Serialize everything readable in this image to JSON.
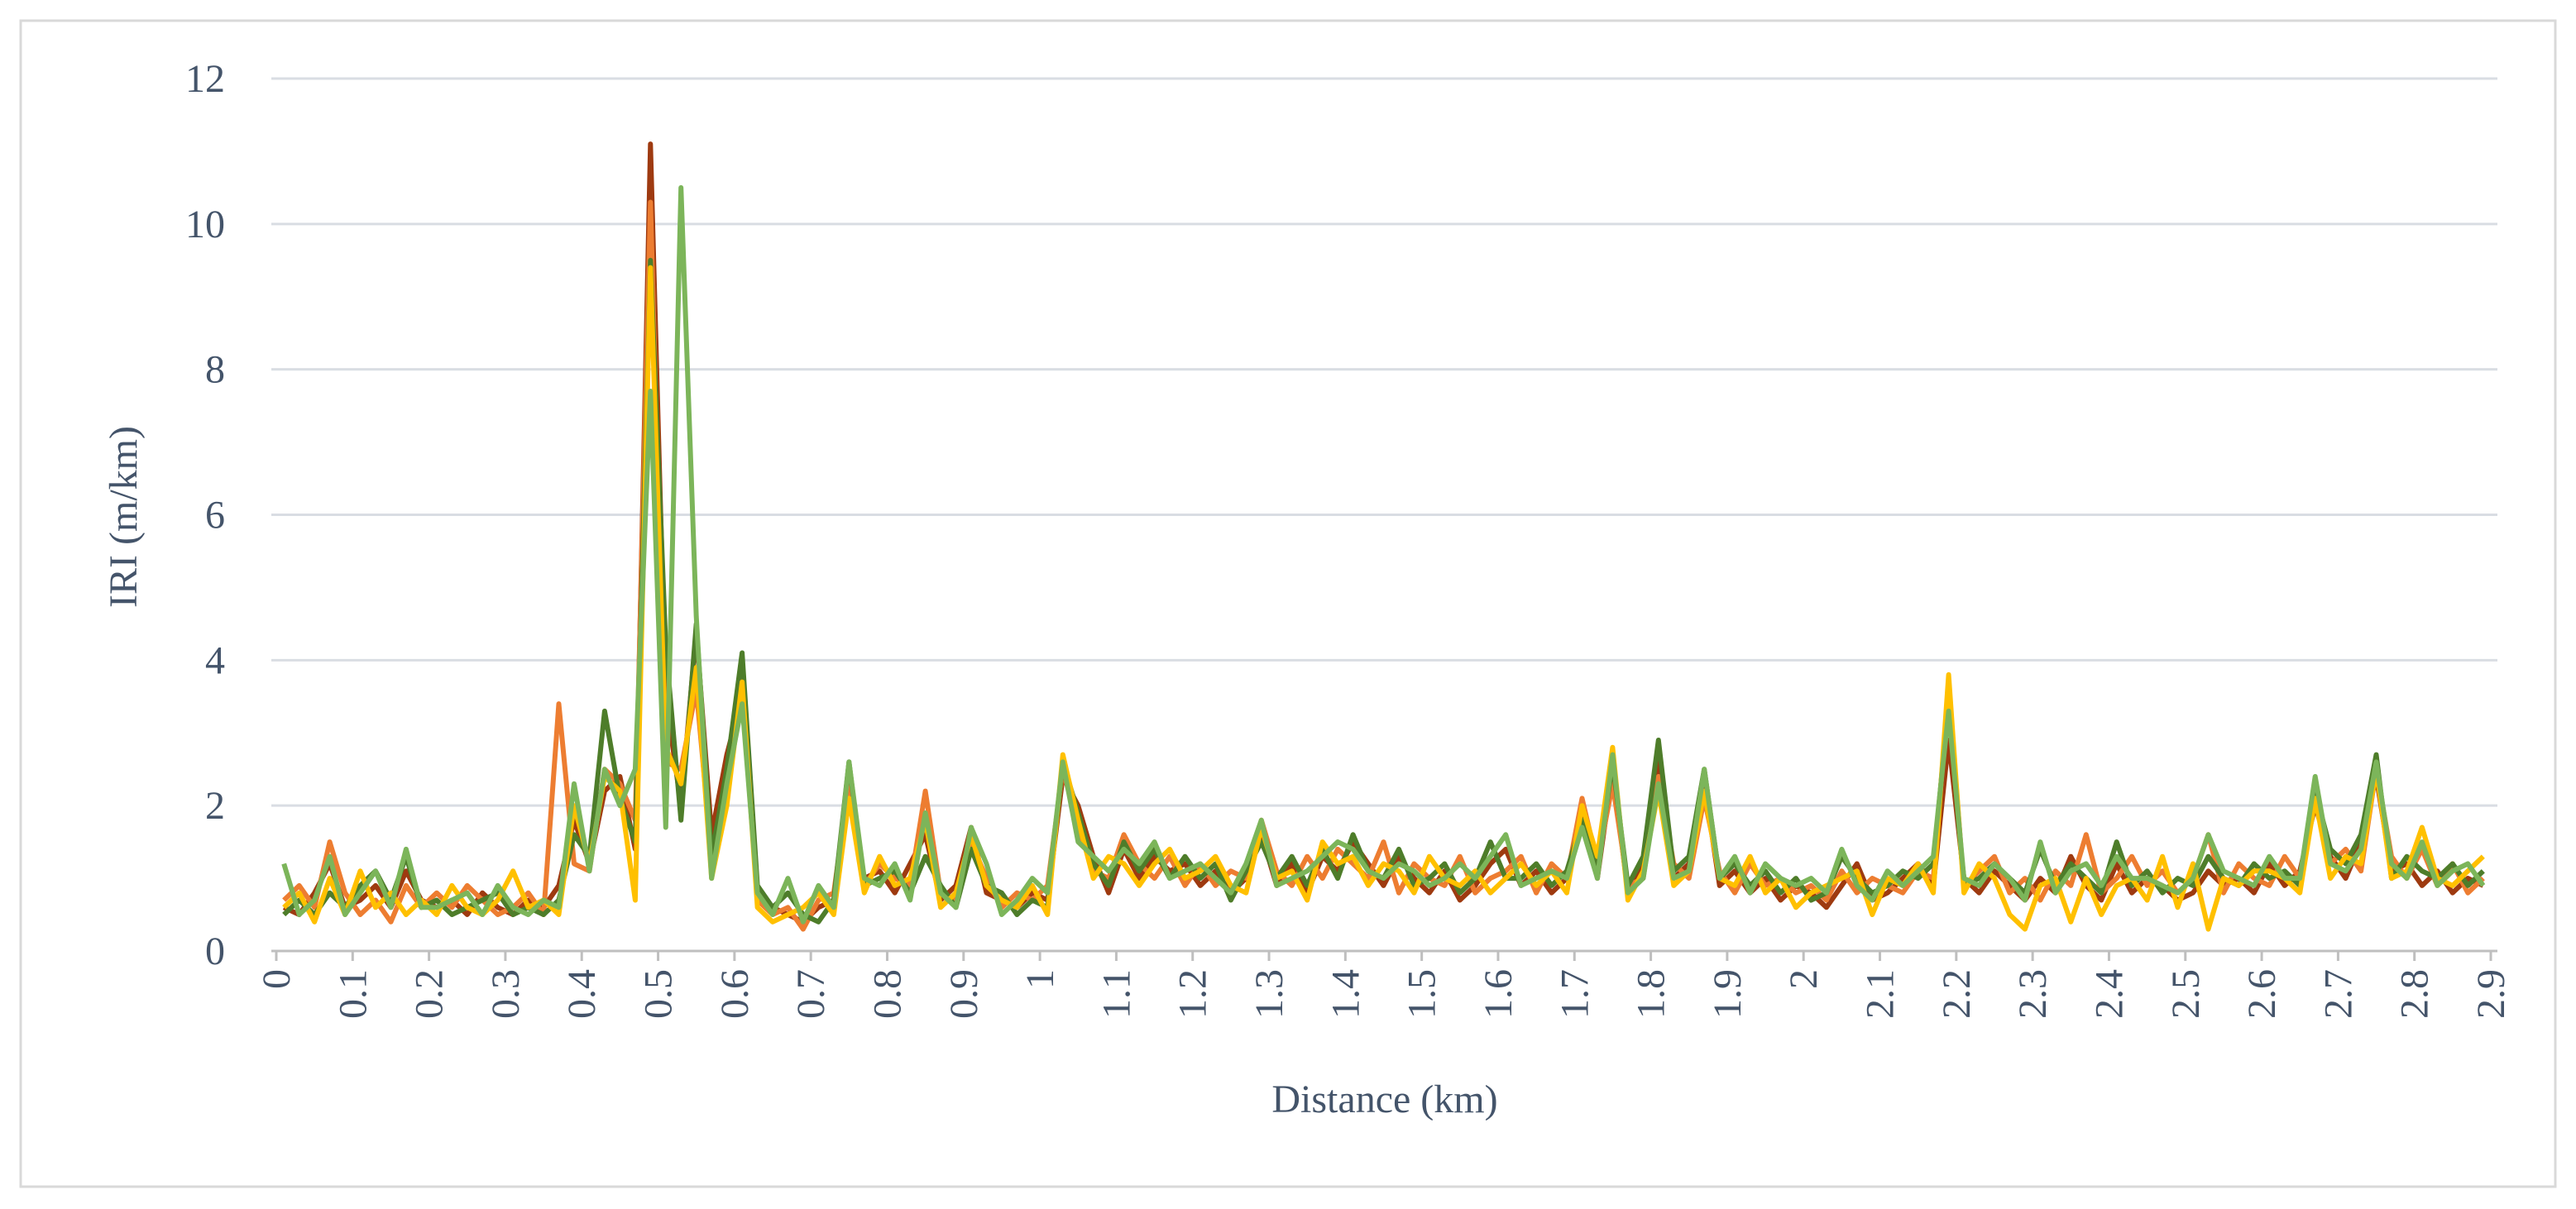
{
  "chart_data": {
    "type": "line",
    "x_label": "Distance (km)",
    "y_label": "IRI (m/km)",
    "x": [
      0.01,
      0.03,
      0.05,
      0.07,
      0.09,
      0.11,
      0.13,
      0.15,
      0.17,
      0.19,
      0.21,
      0.23,
      0.25,
      0.27,
      0.29,
      0.31,
      0.33,
      0.35,
      0.37,
      0.39,
      0.41,
      0.43,
      0.45,
      0.47,
      0.49,
      0.51,
      0.53,
      0.55,
      0.57,
      0.59,
      0.61,
      0.63,
      0.65,
      0.67,
      0.69,
      0.71,
      0.73,
      0.75,
      0.77,
      0.79,
      0.81,
      0.83,
      0.85,
      0.87,
      0.89,
      0.91,
      0.93,
      0.95,
      0.97,
      0.99,
      1.01,
      1.03,
      1.05,
      1.07,
      1.09,
      1.11,
      1.13,
      1.15,
      1.17,
      1.19,
      1.21,
      1.23,
      1.25,
      1.27,
      1.29,
      1.31,
      1.33,
      1.35,
      1.37,
      1.39,
      1.41,
      1.43,
      1.45,
      1.47,
      1.49,
      1.51,
      1.53,
      1.55,
      1.57,
      1.59,
      1.61,
      1.63,
      1.65,
      1.67,
      1.69,
      1.71,
      1.73,
      1.75,
      1.77,
      1.79,
      1.81,
      1.83,
      1.85,
      1.87,
      1.89,
      1.91,
      1.93,
      1.95,
      1.97,
      1.99,
      2.01,
      2.03,
      2.05,
      2.07,
      2.09,
      2.11,
      2.13,
      2.15,
      2.17,
      2.19,
      2.21,
      2.23,
      2.25,
      2.27,
      2.29,
      2.31,
      2.33,
      2.35,
      2.37,
      2.39,
      2.41,
      2.43,
      2.45,
      2.47,
      2.49,
      2.51,
      2.53,
      2.55,
      2.57,
      2.59,
      2.61,
      2.63,
      2.65,
      2.67,
      2.69,
      2.71,
      2.73,
      2.75,
      2.77,
      2.79,
      2.81,
      2.83,
      2.85,
      2.87,
      2.89
    ],
    "series": [
      {
        "color": "#9e3a10",
        "values": [
          0.6,
          0.5,
          0.8,
          1.2,
          0.6,
          0.7,
          0.9,
          0.6,
          1.1,
          0.7,
          0.6,
          0.7,
          0.5,
          0.8,
          0.6,
          0.5,
          0.7,
          0.6,
          0.9,
          1.8,
          1.2,
          2.2,
          2.4,
          1.4,
          11.1,
          3.5,
          2.0,
          4.4,
          1.6,
          2.7,
          3.5,
          0.8,
          0.6,
          0.5,
          0.4,
          0.6,
          0.7,
          2.2,
          1.0,
          1.1,
          0.8,
          1.2,
          1.6,
          0.7,
          0.9,
          1.7,
          0.8,
          0.7,
          0.6,
          0.8,
          0.7,
          2.4,
          2.0,
          1.3,
          0.8,
          1.4,
          1.0,
          1.3,
          1.1,
          1.2,
          0.9,
          1.1,
          0.8,
          1.0,
          1.6,
          0.9,
          1.2,
          0.8,
          1.3,
          1.1,
          1.5,
          1.2,
          0.9,
          1.3,
          1.0,
          0.8,
          1.1,
          0.7,
          0.9,
          1.2,
          1.4,
          0.9,
          1.1,
          0.8,
          1.0,
          1.9,
          1.0,
          2.5,
          0.8,
          1.2,
          2.6,
          1.0,
          1.2,
          2.3,
          0.9,
          1.1,
          0.8,
          1.0,
          0.7,
          0.9,
          0.8,
          0.6,
          0.9,
          1.2,
          0.7,
          0.8,
          1.0,
          1.2,
          0.9,
          2.9,
          1.0,
          0.8,
          1.1,
          0.9,
          0.7,
          1.0,
          0.8,
          1.3,
          0.9,
          0.7,
          1.2,
          0.8,
          1.0,
          0.9,
          0.7,
          0.8,
          1.1,
          0.9,
          1.0,
          0.8,
          1.2,
          0.9,
          1.1,
          2.0,
          1.3,
          1.0,
          1.5,
          2.4,
          1.1,
          1.2,
          0.9,
          1.1,
          0.8,
          1.0,
          0.9
        ]
      },
      {
        "color": "#ed7d31",
        "values": [
          0.7,
          0.9,
          0.6,
          1.5,
          0.8,
          0.5,
          0.7,
          0.4,
          0.9,
          0.6,
          0.8,
          0.6,
          0.9,
          0.7,
          0.5,
          0.6,
          0.8,
          0.5,
          3.4,
          1.2,
          1.1,
          2.5,
          2.3,
          1.8,
          10.3,
          2.6,
          2.5,
          3.6,
          1.3,
          2.2,
          3.8,
          0.7,
          0.5,
          0.6,
          0.3,
          0.7,
          0.8,
          2.3,
          0.9,
          1.2,
          1.0,
          0.9,
          2.2,
          0.8,
          0.7,
          1.5,
          1.0,
          0.6,
          0.8,
          0.7,
          0.9,
          2.5,
          1.7,
          1.1,
          1.0,
          1.6,
          1.2,
          1.0,
          1.3,
          0.9,
          1.2,
          0.9,
          1.1,
          1.0,
          1.8,
          1.1,
          0.9,
          1.3,
          1.0,
          1.4,
          1.2,
          1.0,
          1.5,
          0.8,
          1.2,
          1.0,
          0.9,
          1.3,
          0.8,
          1.0,
          1.1,
          1.3,
          0.8,
          1.2,
          1.0,
          2.1,
          1.2,
          2.3,
          0.9,
          1.0,
          2.4,
          1.2,
          1.0,
          2.1,
          1.1,
          0.8,
          1.2,
          0.9,
          1.0,
          0.8,
          0.9,
          0.7,
          1.1,
          0.8,
          1.0,
          0.9,
          0.8,
          1.1,
          1.0,
          3.6,
          0.9,
          1.1,
          1.3,
          0.8,
          1.0,
          0.7,
          1.1,
          0.9,
          1.6,
          0.8,
          1.0,
          1.3,
          0.9,
          1.1,
          0.8,
          1.0,
          1.6,
          0.8,
          1.2,
          1.0,
          0.9,
          1.3,
          1.0,
          2.3,
          1.2,
          1.4,
          1.1,
          2.5,
          1.3,
          1.0,
          1.4,
          0.9,
          1.2,
          0.8,
          1.0
        ]
      },
      {
        "color": "#4e7d2a",
        "values": [
          0.5,
          0.7,
          0.5,
          0.8,
          0.6,
          0.9,
          1.1,
          0.7,
          1.3,
          0.6,
          0.7,
          0.5,
          0.6,
          0.7,
          0.8,
          0.5,
          0.6,
          0.5,
          0.7,
          1.6,
          1.3,
          3.3,
          2.1,
          1.5,
          9.5,
          4.2,
          1.8,
          4.5,
          1.3,
          2.5,
          4.1,
          0.9,
          0.6,
          0.8,
          0.5,
          0.4,
          0.7,
          2.6,
          0.9,
          1.0,
          1.1,
          0.8,
          1.3,
          0.9,
          0.6,
          1.4,
          0.9,
          0.8,
          0.5,
          0.7,
          0.6,
          2.6,
          1.9,
          1.2,
          0.9,
          1.5,
          1.1,
          1.4,
          1.0,
          1.3,
          1.0,
          1.2,
          0.7,
          1.1,
          1.5,
          1.0,
          1.3,
          0.9,
          1.4,
          1.0,
          1.6,
          1.1,
          1.0,
          1.4,
          0.9,
          1.0,
          1.2,
          0.8,
          1.0,
          1.5,
          1.0,
          1.0,
          1.2,
          0.9,
          1.1,
          1.8,
          1.1,
          2.6,
          0.9,
          1.3,
          2.9,
          1.1,
          1.3,
          2.5,
          1.0,
          1.2,
          0.9,
          1.1,
          0.8,
          1.0,
          0.7,
          0.8,
          1.3,
          1.0,
          0.8,
          0.9,
          1.1,
          1.0,
          1.2,
          3.4,
          0.9,
          1.0,
          1.2,
          1.0,
          0.8,
          1.4,
          0.9,
          1.2,
          1.0,
          0.8,
          1.5,
          0.9,
          1.1,
          0.8,
          1.0,
          0.9,
          1.3,
          1.0,
          0.9,
          1.2,
          1.0,
          1.1,
          0.9,
          2.2,
          1.4,
          1.2,
          1.6,
          2.7,
          1.0,
          1.3,
          1.1,
          1.0,
          1.2,
          0.9,
          1.1
        ]
      },
      {
        "color": "#ffc000",
        "values": [
          0.6,
          0.8,
          0.4,
          1.0,
          0.5,
          1.1,
          0.6,
          0.8,
          0.5,
          0.7,
          0.5,
          0.9,
          0.6,
          0.5,
          0.7,
          1.1,
          0.6,
          0.7,
          0.5,
          2.0,
          1.2,
          2.4,
          2.2,
          0.7,
          9.4,
          2.8,
          2.3,
          3.9,
          1.0,
          2.0,
          3.7,
          0.6,
          0.4,
          0.5,
          0.6,
          0.8,
          0.5,
          2.1,
          0.8,
          1.3,
          0.9,
          1.0,
          1.8,
          0.6,
          0.8,
          1.6,
          0.9,
          0.7,
          0.6,
          0.9,
          0.5,
          2.7,
          1.8,
          1.0,
          1.3,
          1.2,
          0.9,
          1.2,
          1.4,
          1.0,
          1.1,
          1.3,
          0.9,
          0.8,
          1.7,
          1.0,
          1.1,
          0.7,
          1.5,
          1.2,
          1.3,
          0.9,
          1.2,
          1.1,
          0.8,
          1.3,
          1.0,
          0.9,
          1.1,
          0.8,
          1.0,
          1.2,
          0.9,
          1.1,
          0.8,
          2.0,
          1.3,
          2.8,
          0.7,
          1.1,
          2.2,
          0.9,
          1.1,
          2.2,
          1.0,
          0.9,
          1.3,
          0.8,
          1.0,
          0.6,
          0.8,
          0.9,
          1.0,
          1.1,
          0.5,
          1.0,
          0.9,
          1.2,
          0.8,
          3.8,
          0.8,
          1.2,
          1.0,
          0.5,
          0.3,
          0.9,
          1.0,
          0.4,
          1.0,
          0.5,
          0.9,
          1.0,
          0.7,
          1.3,
          0.6,
          1.2,
          0.3,
          1.0,
          0.9,
          1.1,
          1.1,
          1.0,
          0.8,
          2.1,
          1.0,
          1.3,
          1.2,
          2.5,
          1.0,
          1.1,
          1.7,
          1.0,
          0.9,
          1.1,
          1.3
        ]
      },
      {
        "color": "#7cb55a",
        "values": [
          1.2,
          0.5,
          0.7,
          1.3,
          0.5,
          0.8,
          1.1,
          0.6,
          1.4,
          0.6,
          0.6,
          0.7,
          0.8,
          0.5,
          0.9,
          0.6,
          0.5,
          0.7,
          0.6,
          2.3,
          1.1,
          2.5,
          2.0,
          2.5,
          7.7,
          1.7,
          10.5,
          4.6,
          1.0,
          2.3,
          3.4,
          0.8,
          0.5,
          1.0,
          0.4,
          0.9,
          0.6,
          2.6,
          1.0,
          0.9,
          1.2,
          0.7,
          1.9,
          0.8,
          0.6,
          1.7,
          1.2,
          0.5,
          0.7,
          1.0,
          0.8,
          2.6,
          1.5,
          1.3,
          1.1,
          1.4,
          1.2,
          1.5,
          1.0,
          1.1,
          1.2,
          1.0,
          0.8,
          1.2,
          1.8,
          0.9,
          1.0,
          1.1,
          1.3,
          1.5,
          1.4,
          1.1,
          1.0,
          1.2,
          1.1,
          0.9,
          1.0,
          1.2,
          1.0,
          1.3,
          1.6,
          0.9,
          1.0,
          1.1,
          1.0,
          1.7,
          1.0,
          2.7,
          0.8,
          1.0,
          2.3,
          1.0,
          1.1,
          2.5,
          1.0,
          1.3,
          0.8,
          1.2,
          1.0,
          0.9,
          1.0,
          0.8,
          1.4,
          0.9,
          0.7,
          1.1,
          0.9,
          1.1,
          1.3,
          3.3,
          1.0,
          0.9,
          1.2,
          1.0,
          0.7,
          1.5,
          0.8,
          1.1,
          1.2,
          0.9,
          1.3,
          1.0,
          1.0,
          0.9,
          0.8,
          1.0,
          1.6,
          1.1,
          1.0,
          0.9,
          1.3,
          1.0,
          1.0,
          2.4,
          1.2,
          1.1,
          1.4,
          2.6,
          1.2,
          1.0,
          1.5,
          0.9,
          1.1,
          1.2,
          0.9
        ]
      }
    ],
    "xlim": [
      0,
      2.9
    ],
    "xticks": [
      0,
      0.1,
      0.2,
      0.3,
      0.4,
      0.5,
      0.6,
      0.7,
      0.8,
      0.9,
      1,
      1.1,
      1.2,
      1.3,
      1.4,
      1.5,
      1.6,
      1.7,
      1.8,
      1.9,
      2,
      2.1,
      2.2,
      2.3,
      2.4,
      2.5,
      2.6,
      2.7,
      2.8,
      2.9
    ],
    "ylim": [
      0,
      12
    ],
    "yticks": [
      0,
      2,
      4,
      6,
      8,
      10,
      12
    ],
    "grid": true
  }
}
